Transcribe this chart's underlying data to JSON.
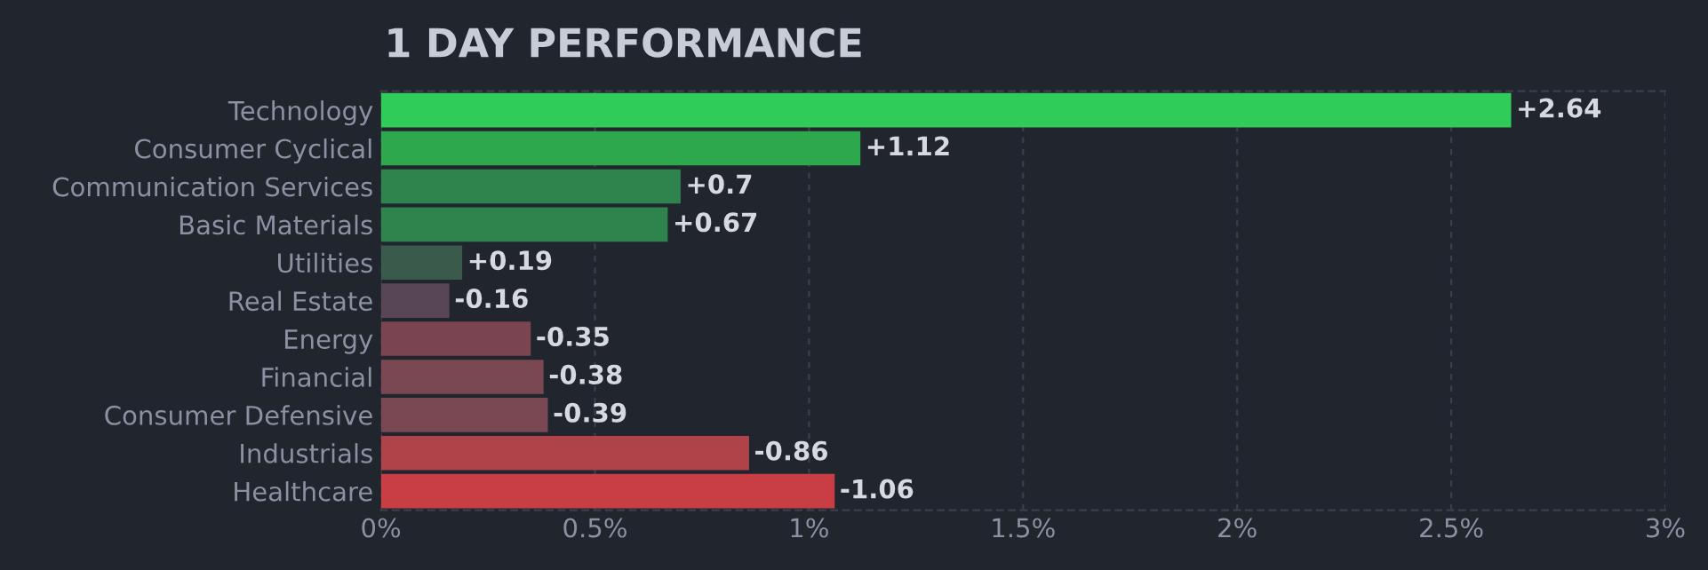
{
  "chart_data": {
    "type": "bar",
    "orientation": "horizontal",
    "title": "1 DAY PERFORMANCE",
    "categories": [
      "Technology",
      "Consumer Cyclical",
      "Communication Services",
      "Basic Materials",
      "Utilities",
      "Real Estate",
      "Energy",
      "Financial",
      "Consumer Defensive",
      "Industrials",
      "Healthcare"
    ],
    "values": [
      2.64,
      1.12,
      0.7,
      0.67,
      0.19,
      -0.16,
      -0.35,
      -0.38,
      -0.39,
      -0.86,
      -1.06
    ],
    "base": [
      0,
      0,
      0,
      0,
      0,
      0.16,
      0.35,
      0.38,
      0.39,
      0.86,
      1.06
    ],
    "value_labels": [
      "+2.64",
      "+1.12",
      "+0.7",
      "+0.67",
      "+0.19",
      "-0.16",
      "-0.35",
      "-0.38",
      "-0.39",
      "-0.86",
      "-1.06"
    ],
    "colors": [
      "#30cc5a",
      "#2ea84c",
      "#2f844d",
      "#2f844d",
      "#3a5a4c",
      "#584556",
      "#7a4550",
      "#7a4852",
      "#7a4852",
      "#b0434a",
      "#c93e45"
    ],
    "xlim": [
      0,
      3
    ],
    "xticks": [
      {
        "value": 0,
        "label": "0%"
      },
      {
        "value": 0.5,
        "label": "0.5%"
      },
      {
        "value": 1,
        "label": "1%"
      },
      {
        "value": 1.5,
        "label": "1.5%"
      },
      {
        "value": 2,
        "label": "2%"
      },
      {
        "value": 2.5,
        "label": "2.5%"
      },
      {
        "value": 3,
        "label": "3%"
      }
    ],
    "grid": "x",
    "legend": false
  }
}
